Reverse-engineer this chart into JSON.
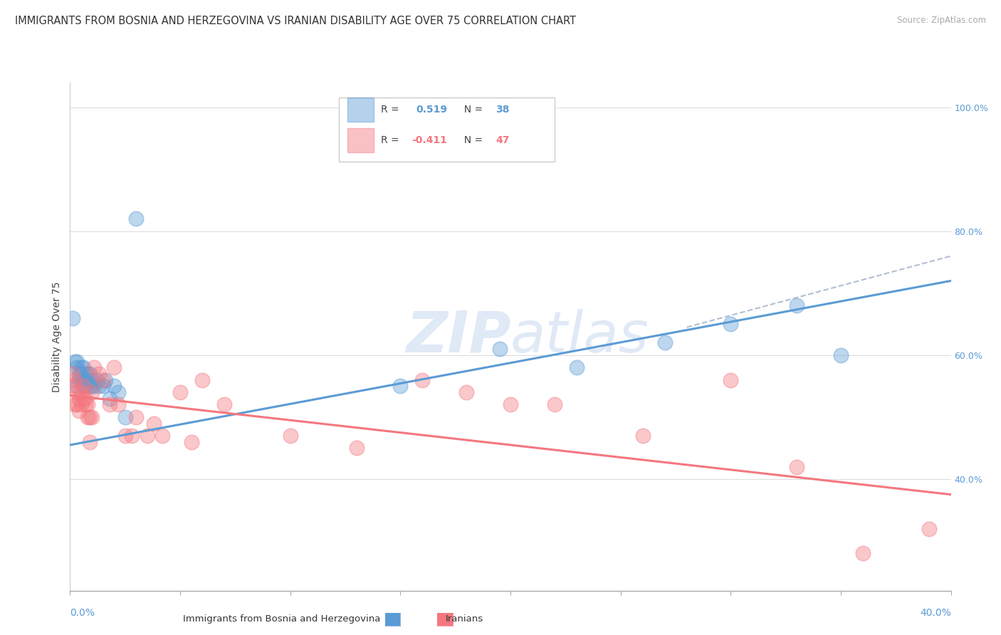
{
  "title": "IMMIGRANTS FROM BOSNIA AND HERZEGOVINA VS IRANIAN DISABILITY AGE OVER 75 CORRELATION CHART",
  "source": "Source: ZipAtlas.com",
  "ylabel": "Disability Age Over 75",
  "right_yticks": [
    "40.0%",
    "60.0%",
    "80.0%",
    "100.0%"
  ],
  "right_ytick_vals": [
    0.4,
    0.6,
    0.8,
    1.0
  ],
  "blue_color": "#5b9bd5",
  "pink_color": "#f4777f",
  "watermark_color": "#c8d8f0",
  "blue_points_x": [
    0.001,
    0.002,
    0.003,
    0.003,
    0.003,
    0.004,
    0.004,
    0.005,
    0.005,
    0.005,
    0.006,
    0.006,
    0.006,
    0.007,
    0.007,
    0.008,
    0.008,
    0.009,
    0.009,
    0.01,
    0.01,
    0.011,
    0.012,
    0.013,
    0.015,
    0.016,
    0.018,
    0.02,
    0.022,
    0.025,
    0.03,
    0.15,
    0.195,
    0.23,
    0.27,
    0.3,
    0.33,
    0.35
  ],
  "blue_points_y": [
    0.66,
    0.59,
    0.58,
    0.59,
    0.55,
    0.56,
    0.57,
    0.56,
    0.57,
    0.58,
    0.55,
    0.56,
    0.58,
    0.55,
    0.57,
    0.56,
    0.57,
    0.55,
    0.57,
    0.55,
    0.56,
    0.55,
    0.56,
    0.55,
    0.55,
    0.56,
    0.53,
    0.55,
    0.54,
    0.5,
    0.82,
    0.55,
    0.61,
    0.58,
    0.62,
    0.65,
    0.68,
    0.6
  ],
  "pink_points_x": [
    0.001,
    0.001,
    0.002,
    0.002,
    0.003,
    0.003,
    0.004,
    0.004,
    0.005,
    0.005,
    0.006,
    0.006,
    0.007,
    0.007,
    0.008,
    0.008,
    0.009,
    0.009,
    0.01,
    0.01,
    0.011,
    0.013,
    0.015,
    0.018,
    0.02,
    0.022,
    0.025,
    0.028,
    0.03,
    0.035,
    0.038,
    0.042,
    0.05,
    0.055,
    0.06,
    0.07,
    0.1,
    0.13,
    0.16,
    0.18,
    0.2,
    0.22,
    0.26,
    0.3,
    0.33,
    0.36,
    0.39
  ],
  "pink_points_y": [
    0.55,
    0.57,
    0.52,
    0.56,
    0.52,
    0.54,
    0.51,
    0.53,
    0.52,
    0.54,
    0.53,
    0.55,
    0.52,
    0.53,
    0.5,
    0.52,
    0.5,
    0.46,
    0.5,
    0.54,
    0.58,
    0.57,
    0.56,
    0.52,
    0.58,
    0.52,
    0.47,
    0.47,
    0.5,
    0.47,
    0.49,
    0.47,
    0.54,
    0.46,
    0.56,
    0.52,
    0.47,
    0.45,
    0.56,
    0.54,
    0.52,
    0.52,
    0.47,
    0.56,
    0.42,
    0.28,
    0.32
  ],
  "xlim": [
    0.0,
    0.4
  ],
  "ylim": [
    0.22,
    1.04
  ],
  "grid_yticks": [
    0.4,
    0.6,
    0.8,
    1.0
  ],
  "blue_line_x0": 0.0,
  "blue_line_y0": 0.455,
  "blue_line_x1": 0.4,
  "blue_line_y1": 0.72,
  "pink_line_x0": 0.0,
  "pink_line_y0": 0.535,
  "pink_line_x1": 0.4,
  "pink_line_y1": 0.375,
  "dash_line_x0": 0.28,
  "dash_line_y0": 0.645,
  "dash_line_x1": 0.4,
  "dash_line_y1": 0.76,
  "grid_color": "#dddddd",
  "background_color": "#ffffff",
  "title_fontsize": 10.5,
  "source_fontsize": 8.5,
  "tick_fontsize": 9
}
